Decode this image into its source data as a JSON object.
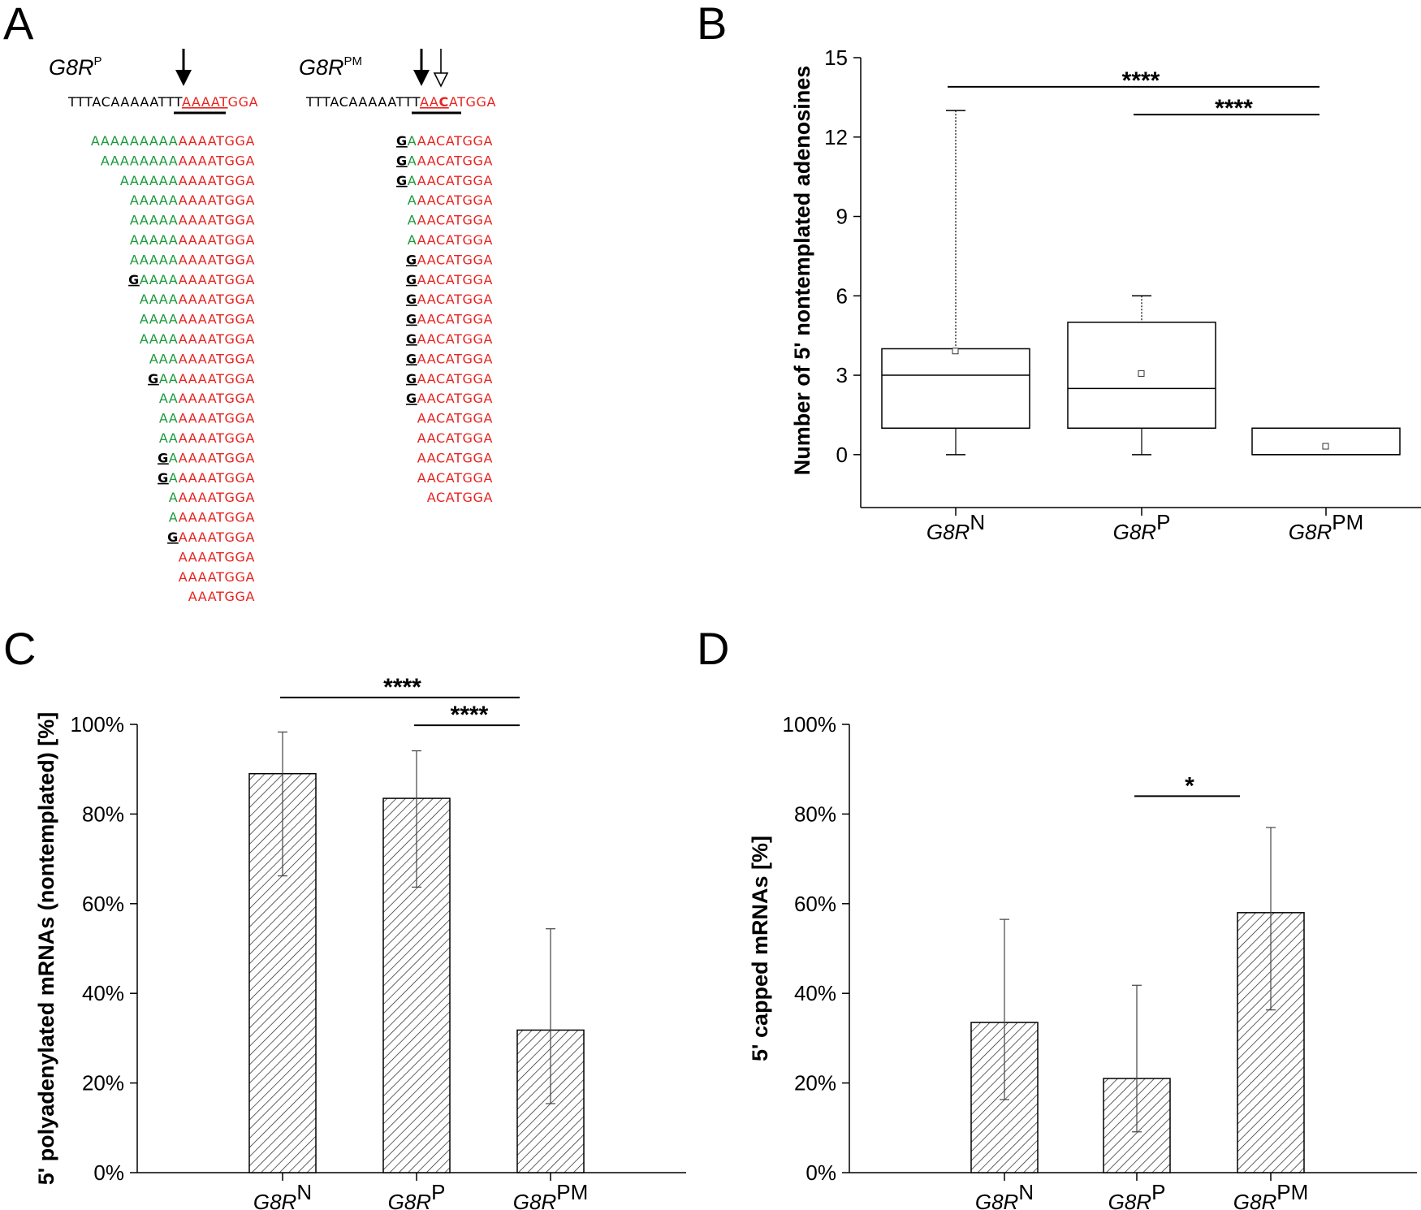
{
  "panels": {
    "a": "A",
    "b": "B",
    "c": "C",
    "d": "D"
  },
  "panel_a": {
    "construct_p": {
      "name": "G8R",
      "sup": "P"
    },
    "construct_pm": {
      "name": "G8R",
      "sup": "PM"
    },
    "ref_p": {
      "prefix": "TTTACAAAAATTT",
      "highlight": "AAAAT",
      "suffix": "GGA"
    },
    "ref_pm": {
      "prefix": "TTTACAAAAATTT",
      "highlight1": "AA",
      "highlight2": "C",
      "suffix": "ATGGA"
    },
    "reads_p": [
      {
        "g": "",
        "a": "AAAAAAAAA",
        "r": "AAAATGGA"
      },
      {
        "g": "",
        "a": "AAAAAAAA",
        "r": "AAAATGGA"
      },
      {
        "g": "",
        "a": "AAAAAA",
        "r": "AAAATGGA"
      },
      {
        "g": "",
        "a": "AAAAA",
        "r": "AAAATGGA"
      },
      {
        "g": "",
        "a": "AAAAA",
        "r": "AAAATGGA"
      },
      {
        "g": "",
        "a": "AAAAA",
        "r": "AAAATGGA"
      },
      {
        "g": "",
        "a": "AAAAA",
        "r": "AAAATGGA"
      },
      {
        "g": "G",
        "a": "AAAA",
        "r": "AAAATGGA"
      },
      {
        "g": "",
        "a": "AAAA",
        "r": "AAAATGGA"
      },
      {
        "g": "",
        "a": "AAAA",
        "r": "AAAATGGA"
      },
      {
        "g": "",
        "a": "AAAA",
        "r": "AAAATGGA"
      },
      {
        "g": "",
        "a": "AAA",
        "r": "AAAATGGA"
      },
      {
        "g": "G",
        "a": "AA",
        "r": "AAAATGGA"
      },
      {
        "g": "",
        "a": "AA",
        "r": "AAAATGGA"
      },
      {
        "g": "",
        "a": "AA",
        "r": "AAAATGGA"
      },
      {
        "g": "",
        "a": "AA",
        "r": "AAAATGGA"
      },
      {
        "g": "G",
        "a": "A",
        "r": "AAAATGGA"
      },
      {
        "g": "G",
        "a": "A",
        "r": "AAAATGGA"
      },
      {
        "g": "",
        "a": "A",
        "r": "AAAATGGA"
      },
      {
        "g": "",
        "a": "A",
        "r": "AAAATGGA"
      },
      {
        "g": "G",
        "a": "",
        "r": "AAAATGGA"
      },
      {
        "g": "",
        "a": "",
        "r": "AAAATGGA"
      },
      {
        "g": "",
        "a": "",
        "r": "AAAATGGA"
      },
      {
        "g": "",
        "a": "",
        "r": "AAATGGA"
      }
    ],
    "reads_pm": [
      {
        "g": "G",
        "a": "A",
        "r": "AACATGGA"
      },
      {
        "g": "G",
        "a": "A",
        "r": "AACATGGA"
      },
      {
        "g": "G",
        "a": "A",
        "r": "AACATGGA"
      },
      {
        "g": "",
        "a": "A",
        "r": "AACATGGA"
      },
      {
        "g": "",
        "a": "A",
        "r": "AACATGGA"
      },
      {
        "g": "",
        "a": "A",
        "r": "AACATGGA"
      },
      {
        "g": "G",
        "a": "",
        "r": "AACATGGA"
      },
      {
        "g": "G",
        "a": "",
        "r": "AACATGGA"
      },
      {
        "g": "G",
        "a": "",
        "r": "AACATGGA"
      },
      {
        "g": "G",
        "a": "",
        "r": "AACATGGA"
      },
      {
        "g": "G",
        "a": "",
        "r": "AACATGGA"
      },
      {
        "g": "G",
        "a": "",
        "r": "AACATGGA"
      },
      {
        "g": "G",
        "a": "",
        "r": "AACATGGA"
      },
      {
        "g": "G",
        "a": "",
        "r": "AACATGGA"
      },
      {
        "g": "",
        "a": "",
        "r": "AACATGGA"
      },
      {
        "g": "",
        "a": "",
        "r": "AACATGGA"
      },
      {
        "g": "",
        "a": "",
        "r": "AACATGGA"
      },
      {
        "g": "",
        "a": "",
        "r": "AACATGGA"
      },
      {
        "g": "",
        "a": "",
        "r": "ACATGGA"
      }
    ],
    "colors": {
      "untemplated": "#1a9a3a",
      "transcript": "#e8231f",
      "genomic": "#000000"
    }
  },
  "chart_data": [
    {
      "panel": "B",
      "type": "box",
      "ylabel": "Number of 5' nontemplated adenosines",
      "ylim": [
        -2,
        15
      ],
      "yticks": [
        0,
        3,
        6,
        9,
        12,
        15
      ],
      "categories": [
        {
          "name": "G8R",
          "sup": "N"
        },
        {
          "name": "G8R",
          "sup": "P"
        },
        {
          "name": "G8R",
          "sup": "PM"
        }
      ],
      "boxes": [
        {
          "min": 0,
          "q1": 1,
          "median": 3,
          "q3": 4,
          "max": 13,
          "mean": 3.9
        },
        {
          "min": 0,
          "q1": 1,
          "median": 2.5,
          "q3": 5,
          "max": 6,
          "mean": 3.05
        },
        {
          "min": 0,
          "q1": 0,
          "median": 0,
          "q3": 1,
          "max": 1,
          "mean": 0.3
        }
      ],
      "significance": [
        {
          "from": 0,
          "to": 2,
          "label": "****",
          "y": 13.9
        },
        {
          "from": 1,
          "to": 2,
          "label": "****",
          "y": 12.85
        }
      ]
    },
    {
      "panel": "C",
      "type": "bar",
      "ylabel": "5' polyadenylated mRNAs (nontemplated) [%]",
      "ylim": [
        0,
        100
      ],
      "yticks": [
        0,
        20,
        40,
        60,
        80,
        100
      ],
      "ytick_labels": [
        "0%",
        "20%",
        "40%",
        "60%",
        "80%",
        "100%"
      ],
      "categories": [
        {
          "name": "G8R",
          "sup": "N"
        },
        {
          "name": "G8R",
          "sup": "P"
        },
        {
          "name": "G8R",
          "sup": "PM"
        }
      ],
      "values": [
        89,
        83.5,
        31.8
      ],
      "error_low": [
        66.2,
        63.7,
        15.4
      ],
      "error_high": [
        98.3,
        94.1,
        54.4
      ],
      "significance": [
        {
          "from": 0,
          "to": 2,
          "label": "****",
          "y": 106
        },
        {
          "from": 1,
          "to": 2,
          "label": "****",
          "y": 99.8
        }
      ]
    },
    {
      "panel": "D",
      "type": "bar",
      "ylabel": "5' capped mRNAs [%]",
      "ylim": [
        0,
        100
      ],
      "yticks": [
        0,
        20,
        40,
        60,
        80,
        100
      ],
      "ytick_labels": [
        "0%",
        "20%",
        "40%",
        "60%",
        "80%",
        "100%"
      ],
      "categories": [
        {
          "name": "G8R",
          "sup": "N"
        },
        {
          "name": "G8R",
          "sup": "P"
        },
        {
          "name": "G8R",
          "sup": "PM"
        }
      ],
      "values": [
        33.5,
        21,
        58
      ],
      "error_low": [
        16.3,
        9.1,
        36.3
      ],
      "error_high": [
        56.5,
        41.8,
        77
      ],
      "significance": [
        {
          "from": 1,
          "to": 2,
          "label": "*",
          "y": 84
        }
      ]
    }
  ]
}
